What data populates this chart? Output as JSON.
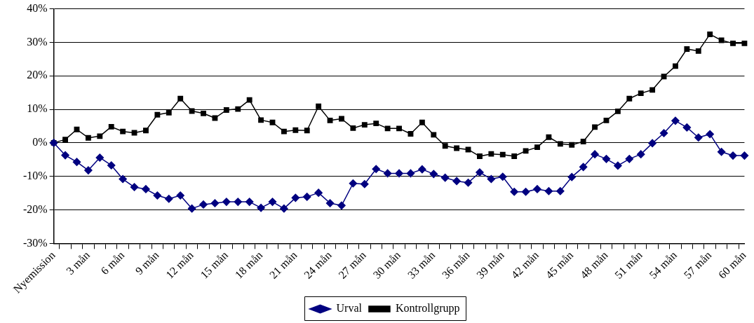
{
  "chart_data": {
    "type": "line",
    "categories": [
      "Nyemission",
      null,
      null,
      "3 mån",
      null,
      null,
      "6 mån",
      null,
      null,
      "9 mån",
      null,
      null,
      "12 mån",
      null,
      null,
      "15 mån",
      null,
      null,
      "18 mån",
      null,
      null,
      "21 mån",
      null,
      null,
      "24 mån",
      null,
      null,
      "27 mån",
      null,
      null,
      "30 mån",
      null,
      null,
      "33 mån",
      null,
      null,
      "36 mån",
      null,
      null,
      "39 mån",
      null,
      null,
      "42 mån",
      null,
      null,
      "45 mån",
      null,
      null,
      "48 mån",
      null,
      null,
      "51 mån",
      null,
      null,
      "54 mån",
      null,
      null,
      "57 mån",
      null,
      null,
      "60 mån"
    ],
    "series": [
      {
        "name": "Urval",
        "color": "#000080",
        "marker": "diamond",
        "values": [
          0,
          -3.7,
          -5.7,
          -8.2,
          -4.4,
          -6.7,
          -10.8,
          -13.2,
          -13.8,
          -15.7,
          -16.7,
          -15.7,
          -19.6,
          -18.4,
          -18.0,
          -17.6,
          -17.6,
          -17.6,
          -19.4,
          -17.6,
          -19.6,
          -16.4,
          -16.1,
          -14.9,
          -18.0,
          -18.7,
          -12.1,
          -12.3,
          -7.8,
          -9.1,
          -9.1,
          -9.1,
          -7.9,
          -9.3,
          -10.4,
          -11.4,
          -11.9,
          -8.8,
          -10.8,
          -10.1,
          -14.6,
          -14.6,
          -13.8,
          -14.4,
          -14.4,
          -10.2,
          -7.2,
          -3.4,
          -4.8,
          -6.8,
          -4.8,
          -3.4,
          -0.1,
          2.9,
          6.6,
          4.6,
          1.6,
          2.6,
          -2.7,
          -3.8,
          -3.8
        ]
      },
      {
        "name": "Kontrollgrupp",
        "color": "#000000",
        "marker": "square",
        "values": [
          0,
          1.0,
          4.0,
          1.5,
          2.0,
          4.8,
          3.4,
          3.0,
          3.7,
          8.4,
          9.0,
          13.2,
          9.5,
          8.8,
          7.4,
          9.8,
          10.1,
          12.8,
          6.8,
          6.1,
          3.4,
          3.8,
          3.7,
          10.9,
          6.7,
          7.2,
          4.4,
          5.4,
          5.8,
          4.3,
          4.3,
          2.7,
          6.1,
          2.4,
          -0.9,
          -1.6,
          -2.0,
          -4.0,
          -3.3,
          -3.5,
          -4.0,
          -2.4,
          -1.3,
          1.7,
          -0.3,
          -0.6,
          0.4,
          4.7,
          6.7,
          9.4,
          13.2,
          14.8,
          15.8,
          19.8,
          22.9,
          28.0,
          27.4,
          32.4,
          30.6,
          29.7,
          29.7
        ]
      }
    ],
    "ylim": [
      -30,
      40
    ],
    "yticks": [
      {
        "value": -30,
        "label": "-30%"
      },
      {
        "value": -20,
        "label": "-20%"
      },
      {
        "value": -10,
        "label": "-10%"
      },
      {
        "value": 0,
        "label": "0%"
      },
      {
        "value": 10,
        "label": "10%"
      },
      {
        "value": 20,
        "label": "20%"
      },
      {
        "value": 30,
        "label": "30%"
      },
      {
        "value": 40,
        "label": "40%"
      }
    ],
    "grid": "y",
    "legend": "bottom",
    "line_style": "solid"
  }
}
